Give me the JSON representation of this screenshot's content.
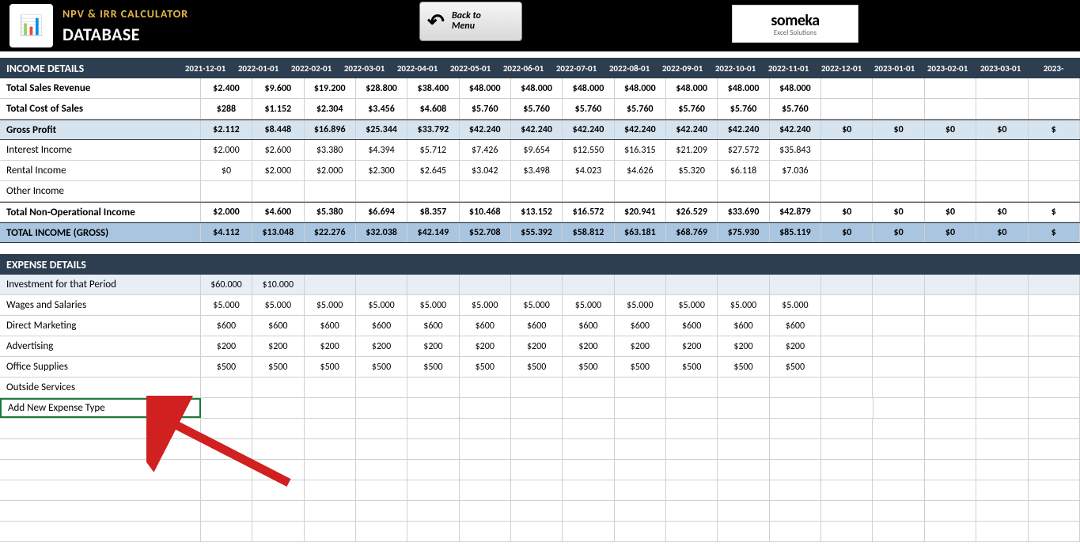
{
  "header": {
    "title": "NPV & IRR CALCULATOR",
    "subtitle": "DATABASE",
    "back_line1": "Back to",
    "back_line2": "Menu",
    "logo_main": "someka",
    "logo_sub": "Excel Solutions"
  },
  "income": {
    "section_label": "INCOME DETAILS",
    "dates": [
      "2021-12-01",
      "2022-01-01",
      "2022-02-01",
      "2022-03-01",
      "2022-04-01",
      "2022-05-01",
      "2022-06-01",
      "2022-07-01",
      "2022-08-01",
      "2022-09-01",
      "2022-10-01",
      "2022-11-01",
      "2022-12-01",
      "2023-01-01",
      "2023-02-01",
      "2023-03-01",
      "2023-"
    ],
    "rows": [
      {
        "label": "Total Sales Revenue",
        "bold": true,
        "vals": [
          "$2.400",
          "$9.600",
          "$19.200",
          "$28.800",
          "$38.400",
          "$48.000",
          "$48.000",
          "$48.000",
          "$48.000",
          "$48.000",
          "$48.000",
          "$48.000",
          "",
          "",
          "",
          "",
          ""
        ]
      },
      {
        "label": "Total Cost of Sales",
        "bold": true,
        "vals": [
          "$288",
          "$1.152",
          "$2.304",
          "$3.456",
          "$4.608",
          "$5.760",
          "$5.760",
          "$5.760",
          "$5.760",
          "$5.760",
          "$5.760",
          "$5.760",
          "",
          "",
          "",
          "",
          ""
        ]
      },
      {
        "label": "Gross Profit",
        "class": "gross-profit",
        "vals": [
          "$2.112",
          "$8.448",
          "$16.896",
          "$25.344",
          "$33.792",
          "$42.240",
          "$42.240",
          "$42.240",
          "$42.240",
          "$42.240",
          "$42.240",
          "$42.240",
          "$0",
          "$0",
          "$0",
          "$0",
          "$"
        ]
      },
      {
        "label": "Interest Income",
        "vals": [
          "$2.000",
          "$2.600",
          "$3.380",
          "$4.394",
          "$5.712",
          "$7.426",
          "$9.654",
          "$12.550",
          "$16.315",
          "$21.209",
          "$27.572",
          "$35.843",
          "",
          "",
          "",
          "",
          ""
        ]
      },
      {
        "label": "Rental Income",
        "vals": [
          "$0",
          "$2.000",
          "$2.000",
          "$2.300",
          "$2.645",
          "$3.042",
          "$3.498",
          "$4.023",
          "$4.626",
          "$5.320",
          "$6.118",
          "$7.036",
          "",
          "",
          "",
          "",
          ""
        ]
      },
      {
        "label": "Other Income",
        "vals": [
          "",
          "",
          "",
          "",
          "",
          "",
          "",
          "",
          "",
          "",
          "",
          "",
          "",
          "",
          "",
          "",
          ""
        ]
      },
      {
        "label": "Total Non-Operational Income",
        "class": "total-nonop",
        "vals": [
          "$2.000",
          "$4.600",
          "$5.380",
          "$6.694",
          "$8.357",
          "$10.468",
          "$13.152",
          "$16.572",
          "$20.941",
          "$26.529",
          "$33.690",
          "$42.879",
          "$0",
          "$0",
          "$0",
          "$0",
          "$"
        ]
      },
      {
        "label": "TOTAL INCOME (GROSS)",
        "class": "total-income",
        "vals": [
          "$4.112",
          "$13.048",
          "$22.276",
          "$32.038",
          "$42.149",
          "$52.708",
          "$55.392",
          "$58.812",
          "$63.181",
          "$68.769",
          "$75.930",
          "$85.119",
          "$0",
          "$0",
          "$0",
          "$0",
          "$"
        ]
      }
    ]
  },
  "expense": {
    "section_label": "EXPENSE DETAILS",
    "rows": [
      {
        "label": "Investment for that Period",
        "class": "investment",
        "vals": [
          "$60.000",
          "$10.000",
          "",
          "",
          "",
          "",
          "",
          "",
          "",
          "",
          "",
          "",
          "",
          "",
          "",
          "",
          ""
        ]
      },
      {
        "label": "Wages and Salaries",
        "vals": [
          "$5.000",
          "$5.000",
          "$5.000",
          "$5.000",
          "$5.000",
          "$5.000",
          "$5.000",
          "$5.000",
          "$5.000",
          "$5.000",
          "$5.000",
          "$5.000",
          "",
          "",
          "",
          "",
          ""
        ]
      },
      {
        "label": "Direct Marketing",
        "vals": [
          "$600",
          "$600",
          "$600",
          "$600",
          "$600",
          "$600",
          "$600",
          "$600",
          "$600",
          "$600",
          "$600",
          "$600",
          "",
          "",
          "",
          "",
          ""
        ]
      },
      {
        "label": "Advertising",
        "vals": [
          "$200",
          "$200",
          "$200",
          "$200",
          "$200",
          "$200",
          "$200",
          "$200",
          "$200",
          "$200",
          "$200",
          "$200",
          "",
          "",
          "",
          "",
          ""
        ]
      },
      {
        "label": "Office Supplies",
        "vals": [
          "$500",
          "$500",
          "$500",
          "$500",
          "$500",
          "$500",
          "$500",
          "$500",
          "$500",
          "$500",
          "$500",
          "$500",
          "",
          "",
          "",
          "",
          ""
        ]
      },
      {
        "label": "Outside Services",
        "vals": [
          "",
          "",
          "",
          "",
          "",
          "",
          "",
          "",
          "",
          "",
          "",
          "",
          "",
          "",
          "",
          "",
          ""
        ]
      },
      {
        "label": "Add New Expense Type",
        "class": "editing",
        "vals": [
          "",
          "",
          "",
          "",
          "",
          "",
          "",
          "",
          "",
          "",
          "",
          "",
          "",
          "",
          "",
          "",
          ""
        ]
      },
      {
        "label": "",
        "class": "empty",
        "vals": [
          "",
          "",
          "",
          "",
          "",
          "",
          "",
          "",
          "",
          "",
          "",
          "",
          "",
          "",
          "",
          "",
          ""
        ]
      },
      {
        "label": "",
        "class": "empty",
        "vals": [
          "",
          "",
          "",
          "",
          "",
          "",
          "",
          "",
          "",
          "",
          "",
          "",
          "",
          "",
          "",
          "",
          ""
        ]
      },
      {
        "label": "",
        "class": "empty",
        "vals": [
          "",
          "",
          "",
          "",
          "",
          "",
          "",
          "",
          "",
          "",
          "",
          "",
          "",
          "",
          "",
          "",
          ""
        ]
      },
      {
        "label": "",
        "class": "empty",
        "vals": [
          "",
          "",
          "",
          "",
          "",
          "",
          "",
          "",
          "",
          "",
          "",
          "",
          "",
          "",
          "",
          "",
          ""
        ]
      },
      {
        "label": "",
        "class": "empty",
        "vals": [
          "",
          "",
          "",
          "",
          "",
          "",
          "",
          "",
          "",
          "",
          "",
          "",
          "",
          "",
          "",
          "",
          ""
        ]
      },
      {
        "label": "",
        "class": "empty",
        "vals": [
          "",
          "",
          "",
          "",
          "",
          "",
          "",
          "",
          "",
          "",
          "",
          "",
          "",
          "",
          "",
          "",
          ""
        ]
      }
    ]
  },
  "colors": {
    "header_bg": "#000000",
    "title_color": "#e6b84a",
    "section_bg": "#2d3e50",
    "gross_profit_bg": "#d6e4f0",
    "total_income_bg": "#a9c5e0",
    "investment_bg": "#e8eef5",
    "border": "#d0d0d0",
    "edit_border": "#1a7a3a",
    "arrow_color": "#d02020"
  }
}
